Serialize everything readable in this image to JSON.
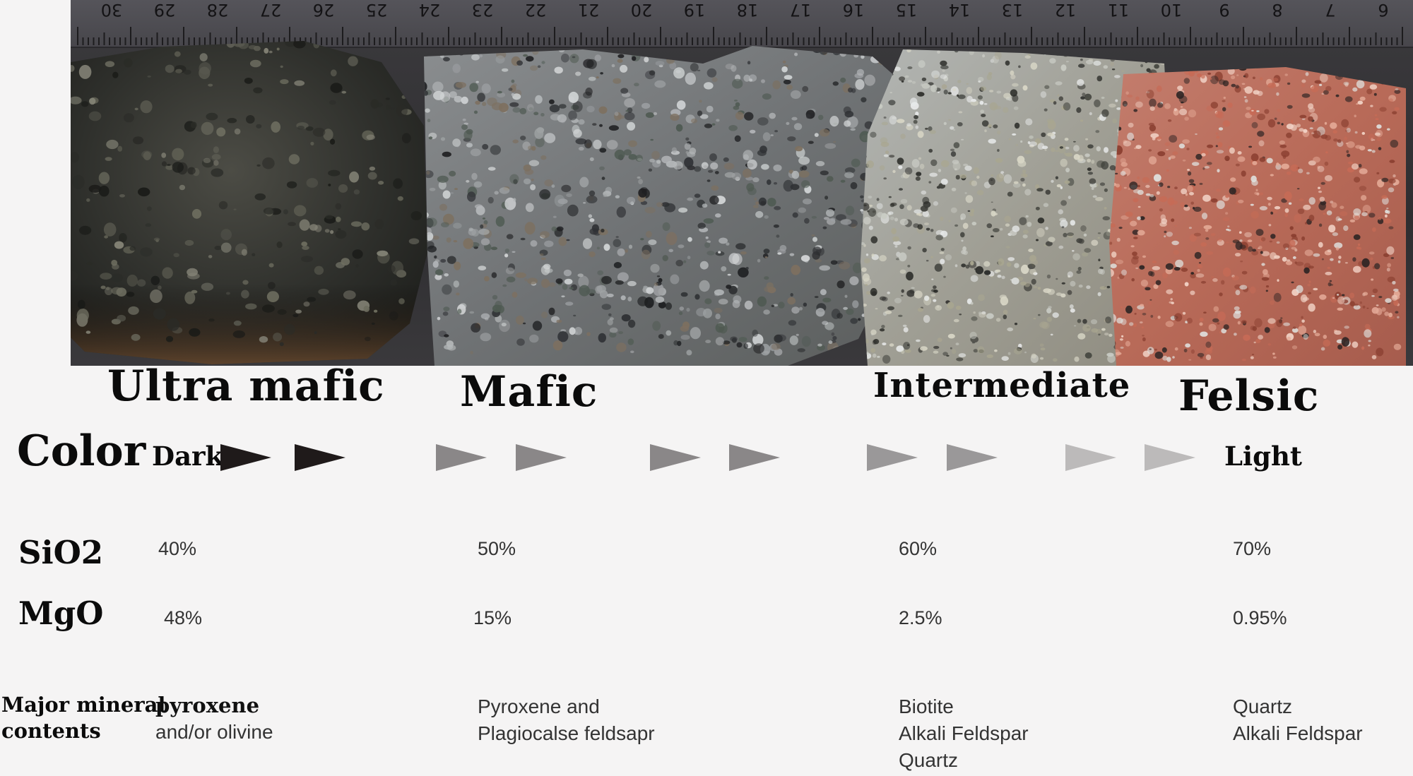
{
  "ruler": {
    "numbers": [
      "30",
      "29",
      "28",
      "27",
      "26",
      "25",
      "24",
      "23",
      "22",
      "21",
      "20",
      "19",
      "18",
      "17",
      "16",
      "15",
      "14",
      "13",
      "12",
      "11",
      "10",
      "9",
      "8",
      "7",
      "6"
    ]
  },
  "categories": [
    {
      "id": "ultra-mafic",
      "label": "Ultra mafic"
    },
    {
      "id": "mafic",
      "label": "Mafic"
    },
    {
      "id": "intermediate",
      "label": "Intermediate"
    },
    {
      "id": "felsic",
      "label": "Felsic"
    }
  ],
  "color_row": {
    "label": "Color",
    "start": "Dark",
    "end": "Light",
    "arrow_colors": [
      "#1f1a1a",
      "#1f1a1a",
      "#8a8788",
      "#8a8788",
      "#8a8788",
      "#8a8788",
      "#9a9899",
      "#9a9899",
      "#bcbaba",
      "#bcbaba"
    ]
  },
  "sio2_row": {
    "label": "SiO2",
    "values": [
      "40%",
      "50%",
      "60%",
      "70%"
    ]
  },
  "mgo_row": {
    "label": "MgO",
    "values": [
      "48%",
      "15%",
      "2.5%",
      "0.95%"
    ]
  },
  "minerals_row": {
    "label_line1": "Major mineral",
    "label_line2": "contents",
    "values": [
      [
        "pyroxene",
        "and/or olivine"
      ],
      [
        "Pyroxene and",
        "Plagiocalse feldsapr"
      ],
      [
        "Biotite",
        "Alkali Feldspar",
        "Quartz"
      ],
      [
        "Quartz",
        "Alkali Feldspar"
      ]
    ]
  }
}
